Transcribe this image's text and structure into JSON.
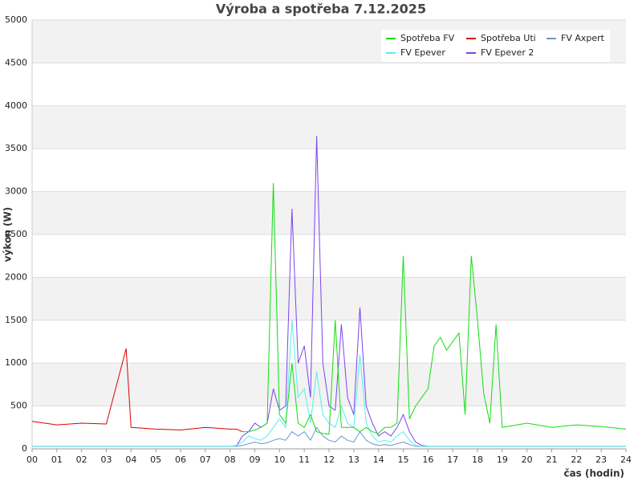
{
  "chart_data": {
    "type": "line",
    "title": "Výroba a spotřeba 7.12.2025",
    "ylabel": "výkon (W)",
    "xlabel": "čas (hodin)",
    "xlim": [
      0,
      24
    ],
    "ylim": [
      0,
      5000
    ],
    "yticks": [
      0,
      500,
      1000,
      1500,
      2000,
      2500,
      3000,
      3500,
      4000,
      4500,
      5000
    ],
    "xticks": [
      {
        "value": 0,
        "label": "00"
      },
      {
        "value": 1,
        "label": "01"
      },
      {
        "value": 2,
        "label": "02"
      },
      {
        "value": 3,
        "label": "03"
      },
      {
        "value": 4,
        "label": "04"
      },
      {
        "value": 5,
        "label": "05"
      },
      {
        "value": 6,
        "label": "06"
      },
      {
        "value": 7,
        "label": "07"
      },
      {
        "value": 8,
        "label": "08"
      },
      {
        "value": 9,
        "label": "09"
      },
      10,
      11,
      12,
      13,
      14,
      15,
      16,
      17,
      18,
      19,
      20,
      21,
      22,
      23,
      24
    ],
    "grid": true,
    "legend": "upper right",
    "x": [
      0,
      1,
      2,
      3,
      3.8,
      4,
      5,
      6,
      7,
      8,
      8.25,
      8.5,
      8.75,
      9,
      9.25,
      9.5,
      9.75,
      10,
      10.25,
      10.5,
      10.75,
      11,
      11.25,
      11.5,
      11.75,
      12,
      12.25,
      12.5,
      12.75,
      13,
      13.25,
      13.5,
      13.75,
      14,
      14.25,
      14.5,
      14.75,
      15,
      15.25,
      15.5,
      15.75,
      16,
      16.25,
      16.5,
      16.75,
      17,
      17.25,
      17.5,
      17.75,
      18,
      18.25,
      18.5,
      18.75,
      19,
      20,
      21,
      22,
      23,
      24
    ],
    "series": [
      {
        "name": "Spotřeba FV",
        "color": "#11dd11",
        "values": [
          null,
          null,
          null,
          null,
          null,
          null,
          null,
          null,
          null,
          null,
          null,
          200,
          200,
          220,
          250,
          300,
          3100,
          400,
          300,
          1000,
          300,
          250,
          400,
          200,
          180,
          170,
          1500,
          250,
          250,
          250,
          200,
          250,
          200,
          180,
          250,
          250,
          300,
          2250,
          350,
          500,
          600,
          700,
          1200,
          1300,
          1150,
          1250,
          1350,
          400,
          2250,
          1500,
          650,
          300,
          1450,
          250,
          300,
          250,
          280,
          260,
          230
        ]
      },
      {
        "name": "Spotřeba Uti",
        "color": "#dd0000",
        "values": [
          320,
          280,
          300,
          290,
          1170,
          250,
          230,
          220,
          250,
          230,
          230,
          200,
          null,
          null,
          null,
          null,
          null,
          null,
          null,
          null,
          null,
          null,
          null,
          null,
          null,
          null,
          null,
          null,
          null,
          null,
          null,
          null,
          null,
          null,
          null,
          null,
          null,
          null,
          null,
          null,
          null,
          null,
          null,
          null,
          null,
          null,
          null,
          null,
          null,
          null,
          null,
          null,
          null,
          null,
          null,
          null,
          null,
          null,
          null
        ]
      },
      {
        "name": "FV Axpert",
        "color": "#6699cc",
        "values": [
          30,
          30,
          30,
          30,
          30,
          30,
          30,
          30,
          30,
          30,
          30,
          40,
          60,
          80,
          60,
          70,
          100,
          120,
          100,
          200,
          150,
          200,
          100,
          250,
          150,
          100,
          80,
          150,
          100,
          80,
          200,
          100,
          60,
          40,
          50,
          40,
          60,
          80,
          50,
          30,
          30,
          30,
          30,
          30,
          30,
          30,
          30,
          30,
          30,
          30,
          30,
          30,
          30,
          30,
          30,
          30,
          30,
          30,
          30
        ]
      },
      {
        "name": "FV Epever",
        "color": "#55eeee",
        "values": [
          30,
          30,
          30,
          30,
          30,
          30,
          30,
          30,
          30,
          30,
          40,
          80,
          150,
          120,
          100,
          150,
          250,
          350,
          250,
          1500,
          600,
          700,
          300,
          900,
          400,
          300,
          250,
          500,
          300,
          250,
          1100,
          300,
          150,
          80,
          100,
          80,
          150,
          200,
          100,
          40,
          30,
          30,
          30,
          30,
          30,
          30,
          30,
          30,
          30,
          30,
          30,
          30,
          30,
          30,
          30,
          30,
          30,
          30,
          30
        ]
      },
      {
        "name": "FV Epever 2",
        "color": "#7a44ee",
        "values": [
          null,
          null,
          null,
          null,
          null,
          null,
          null,
          null,
          null,
          null,
          30,
          150,
          200,
          300,
          250,
          300,
          700,
          450,
          500,
          2800,
          1000,
          1200,
          600,
          3650,
          1000,
          500,
          450,
          1450,
          600,
          400,
          1650,
          500,
          300,
          150,
          200,
          150,
          250,
          400,
          200,
          80,
          40,
          30,
          null,
          null,
          null,
          null,
          null,
          null,
          null,
          null,
          null,
          null,
          null,
          null,
          null,
          null,
          null,
          null,
          null
        ]
      }
    ]
  }
}
